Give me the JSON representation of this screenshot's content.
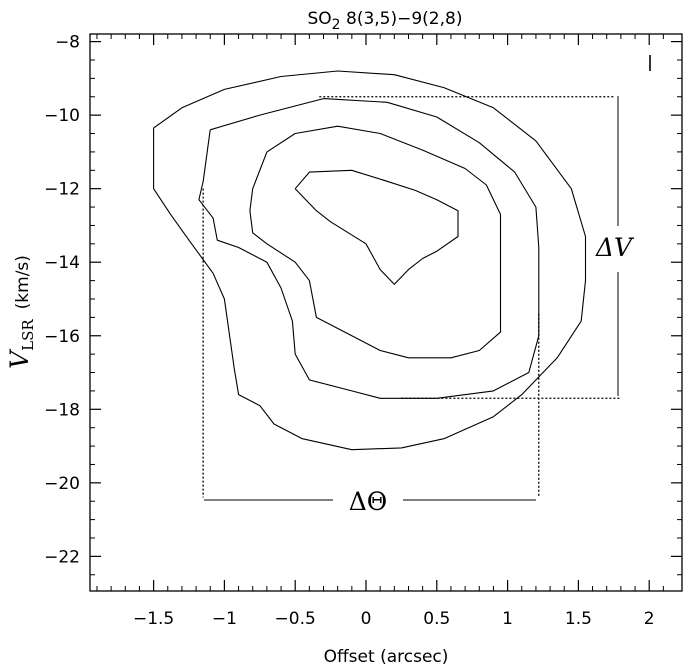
{
  "chart_data": {
    "type": "contour",
    "title": {
      "main": "SO",
      "sub": "2",
      "rest": " 8(3,5)−9(2,8)"
    },
    "xlabel": "Offset (arcsec)",
    "ylabel": {
      "symbol": "V",
      "subscript": "LSR",
      "unit": "(km/s)"
    },
    "xlim": [
      -1.9,
      2.25
    ],
    "ylim": [
      -23,
      -7.7
    ],
    "xticks": [
      -1.5,
      -1,
      -0.5,
      0,
      0.5,
      1,
      1.5,
      2
    ],
    "xtick_labels": [
      "−1.5",
      "−1",
      "−0.5",
      "0",
      "0.5",
      "1",
      "1.5",
      "2"
    ],
    "yticks": [
      -8,
      -10,
      -12,
      -14,
      -16,
      -18,
      -20,
      -22
    ],
    "ytick_labels": [
      "−8",
      "−10",
      "−12",
      "−14",
      "−16",
      "−18",
      "−20",
      "−22"
    ],
    "contours": [
      {
        "name": "level-1",
        "points": [
          [
            -1.5,
            -10.35
          ],
          [
            -1.3,
            -9.8
          ],
          [
            -1.0,
            -9.3
          ],
          [
            -0.6,
            -8.95
          ],
          [
            -0.2,
            -8.8
          ],
          [
            0.2,
            -8.9
          ],
          [
            0.55,
            -9.25
          ],
          [
            0.9,
            -9.8
          ],
          [
            1.2,
            -10.7
          ],
          [
            1.45,
            -12.0
          ],
          [
            1.55,
            -13.3
          ],
          [
            1.55,
            -14.5
          ],
          [
            1.52,
            -15.6
          ],
          [
            1.35,
            -16.6
          ],
          [
            1.1,
            -17.6
          ],
          [
            0.9,
            -18.2
          ],
          [
            0.55,
            -18.8
          ],
          [
            0.25,
            -19.05
          ],
          [
            -0.1,
            -19.1
          ],
          [
            -0.45,
            -18.8
          ],
          [
            -0.65,
            -18.4
          ],
          [
            -0.75,
            -17.9
          ],
          [
            -0.9,
            -17.6
          ],
          [
            -0.93,
            -16.9
          ],
          [
            -1.0,
            -15.0
          ],
          [
            -1.08,
            -14.3
          ],
          [
            -1.25,
            -13.4
          ],
          [
            -1.38,
            -12.7
          ],
          [
            -1.5,
            -12.0
          ],
          [
            -1.5,
            -10.35
          ]
        ]
      },
      {
        "name": "level-2",
        "points": [
          [
            -1.1,
            -10.4
          ],
          [
            -0.75,
            -10.0
          ],
          [
            -0.3,
            -9.55
          ],
          [
            0.15,
            -9.65
          ],
          [
            0.5,
            -10.05
          ],
          [
            0.8,
            -10.75
          ],
          [
            1.05,
            -11.55
          ],
          [
            1.2,
            -12.5
          ],
          [
            1.22,
            -13.6
          ],
          [
            1.22,
            -14.8
          ],
          [
            1.22,
            -16.0
          ],
          [
            1.15,
            -17.0
          ],
          [
            0.9,
            -17.5
          ],
          [
            0.5,
            -17.7
          ],
          [
            0.1,
            -17.7
          ],
          [
            -0.1,
            -17.5
          ],
          [
            -0.4,
            -17.2
          ],
          [
            -0.5,
            -16.5
          ],
          [
            -0.52,
            -15.6
          ],
          [
            -0.6,
            -14.7
          ],
          [
            -0.7,
            -14.0
          ],
          [
            -0.9,
            -13.6
          ],
          [
            -1.05,
            -13.4
          ],
          [
            -1.08,
            -12.8
          ],
          [
            -1.18,
            -12.3
          ],
          [
            -1.15,
            -11.8
          ],
          [
            -1.1,
            -10.4
          ]
        ]
      },
      {
        "name": "level-3",
        "points": [
          [
            -0.7,
            -11.0
          ],
          [
            -0.5,
            -10.5
          ],
          [
            -0.2,
            -10.3
          ],
          [
            0.1,
            -10.5
          ],
          [
            0.4,
            -10.95
          ],
          [
            0.7,
            -11.45
          ],
          [
            0.85,
            -11.9
          ],
          [
            0.95,
            -12.7
          ],
          [
            0.95,
            -13.6
          ],
          [
            0.95,
            -14.7
          ],
          [
            0.95,
            -15.9
          ],
          [
            0.8,
            -16.4
          ],
          [
            0.6,
            -16.6
          ],
          [
            0.3,
            -16.6
          ],
          [
            0.1,
            -16.4
          ],
          [
            -0.1,
            -16.0
          ],
          [
            -0.35,
            -15.5
          ],
          [
            -0.4,
            -14.5
          ],
          [
            -0.5,
            -14.0
          ],
          [
            -0.7,
            -13.5
          ],
          [
            -0.8,
            -13.2
          ],
          [
            -0.82,
            -12.6
          ],
          [
            -0.8,
            -12.0
          ],
          [
            -0.7,
            -11.0
          ]
        ]
      },
      {
        "name": "level-4",
        "points": [
          [
            -0.5,
            -12.0
          ],
          [
            -0.4,
            -11.55
          ],
          [
            -0.1,
            -11.5
          ],
          [
            0.15,
            -11.8
          ],
          [
            0.35,
            -12.05
          ],
          [
            0.5,
            -12.3
          ],
          [
            0.65,
            -12.6
          ],
          [
            0.65,
            -13.3
          ],
          [
            0.5,
            -13.7
          ],
          [
            0.4,
            -13.9
          ],
          [
            0.3,
            -14.2
          ],
          [
            0.2,
            -14.6
          ],
          [
            0.1,
            -14.2
          ],
          [
            0.0,
            -13.5
          ],
          [
            -0.25,
            -12.9
          ],
          [
            -0.35,
            -12.6
          ],
          [
            -0.5,
            -12.0
          ]
        ]
      }
    ],
    "dashed_lines": [
      {
        "name": "deltav-top-line",
        "points": [
          [
            -0.33,
            -9.5
          ],
          [
            1.75,
            -9.5
          ]
        ]
      },
      {
        "name": "deltav-bottom-line",
        "points": [
          [
            0.25,
            -17.7
          ],
          [
            1.8,
            -17.7
          ]
        ]
      },
      {
        "name": "deltatheta-left-line",
        "points": [
          [
            -1.15,
            -12.0
          ],
          [
            -1.15,
            -20.4
          ]
        ]
      },
      {
        "name": "deltatheta-right-line",
        "points": [
          [
            1.22,
            -15.4
          ],
          [
            1.22,
            -20.4
          ]
        ]
      }
    ],
    "annotations": {
      "delta_v": "ΔV",
      "delta_theta": "ΔΘ"
    }
  }
}
